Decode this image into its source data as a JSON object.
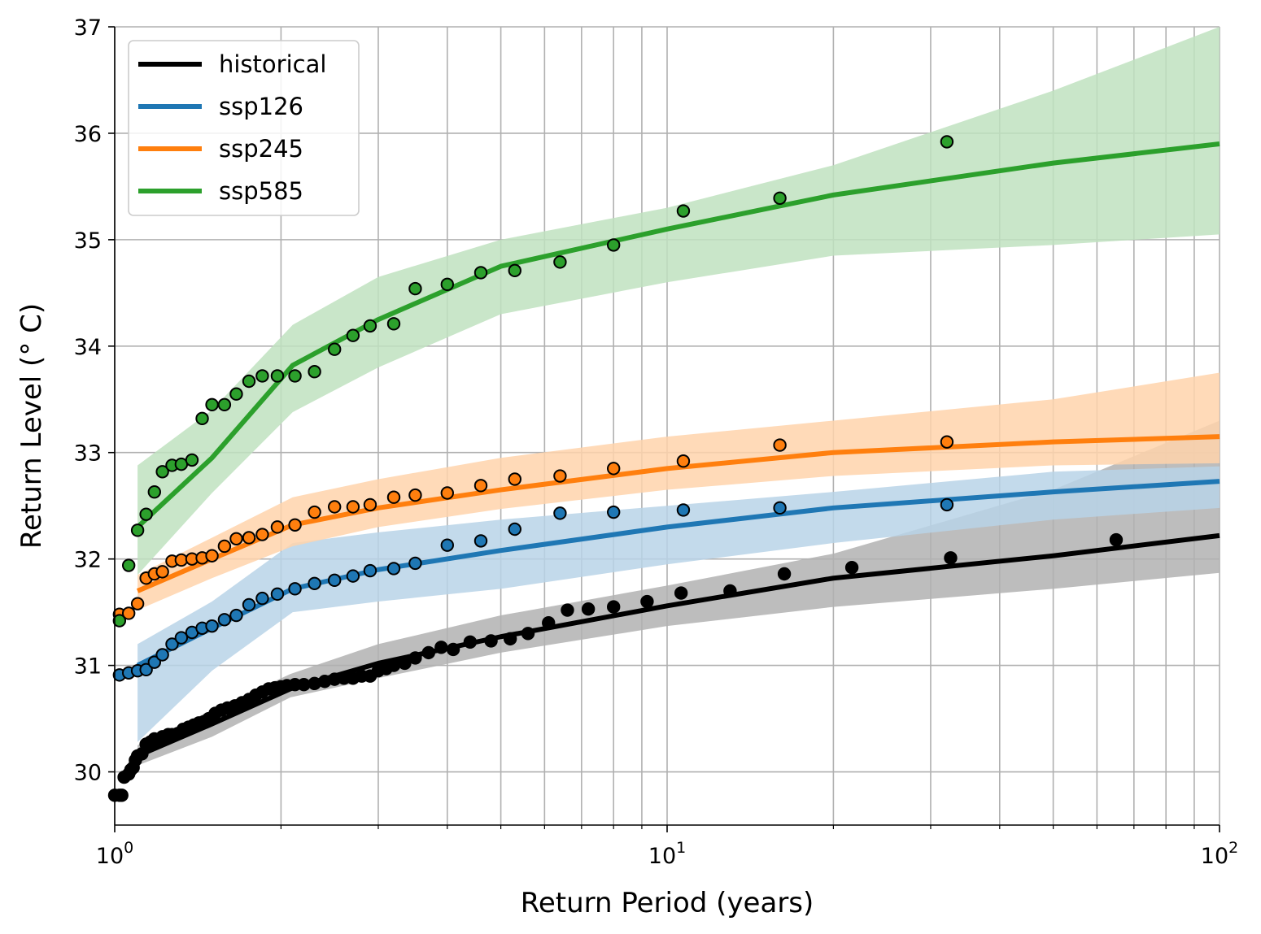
{
  "chart_data": {
    "type": "line",
    "xlabel": "Return Period (years)",
    "ylabel": "Return Level (° C)",
    "x_scale": "log",
    "xlim": [
      1,
      100
    ],
    "ylim": [
      29.5,
      37
    ],
    "grid": "major and minor x, major y",
    "legend_placement": "top-left",
    "x_ticks": [
      {
        "value": 1,
        "base": "10",
        "exp": "0"
      },
      {
        "value": 10,
        "base": "10",
        "exp": "1"
      },
      {
        "value": 100,
        "base": "10",
        "exp": "2"
      }
    ],
    "y_ticks": [
      {
        "value": 30,
        "label": "30"
      },
      {
        "value": 31,
        "label": "31"
      },
      {
        "value": 32,
        "label": "32"
      },
      {
        "value": 33,
        "label": "33"
      },
      {
        "value": 34,
        "label": "34"
      },
      {
        "value": 35,
        "label": "35"
      },
      {
        "value": 36,
        "label": "36"
      },
      {
        "value": 37,
        "label": "37"
      }
    ],
    "series": [
      {
        "name": "historical",
        "color": "#000000",
        "band_color": "#b2b2b2",
        "points_edge": "#000000",
        "fit": [
          [
            1.1,
            30.15
          ],
          [
            1.5,
            30.45
          ],
          [
            2.08,
            30.78
          ],
          [
            3,
            31.02
          ],
          [
            5,
            31.27
          ],
          [
            10,
            31.56
          ],
          [
            20,
            31.82
          ],
          [
            50,
            32.03
          ],
          [
            100,
            32.22
          ]
        ],
        "band_upper": [
          [
            1.1,
            30.25
          ],
          [
            1.5,
            30.58
          ],
          [
            2.08,
            30.92
          ],
          [
            3,
            31.2
          ],
          [
            5,
            31.47
          ],
          [
            10,
            31.75
          ],
          [
            20,
            32.05
          ],
          [
            50,
            32.65
          ],
          [
            100,
            33.3
          ]
        ],
        "band_lower": [
          [
            1.1,
            30.06
          ],
          [
            1.5,
            30.33
          ],
          [
            2.08,
            30.7
          ],
          [
            3,
            30.88
          ],
          [
            5,
            31.12
          ],
          [
            10,
            31.37
          ],
          [
            20,
            31.55
          ],
          [
            50,
            31.72
          ],
          [
            100,
            31.87
          ]
        ],
        "points": [
          [
            1.0,
            29.78
          ],
          [
            1.02,
            29.78
          ],
          [
            1.03,
            29.78
          ],
          [
            1.04,
            29.95
          ],
          [
            1.06,
            29.98
          ],
          [
            1.07,
            30.02
          ],
          [
            1.08,
            30.04
          ],
          [
            1.09,
            30.11
          ],
          [
            1.1,
            30.15
          ],
          [
            1.12,
            30.17
          ],
          [
            1.14,
            30.26
          ],
          [
            1.16,
            30.28
          ],
          [
            1.18,
            30.31
          ],
          [
            1.2,
            30.3
          ],
          [
            1.22,
            30.33
          ],
          [
            1.25,
            30.35
          ],
          [
            1.27,
            30.35
          ],
          [
            1.3,
            30.36
          ],
          [
            1.33,
            30.4
          ],
          [
            1.36,
            30.42
          ],
          [
            1.39,
            30.44
          ],
          [
            1.42,
            30.46
          ],
          [
            1.45,
            30.47
          ],
          [
            1.48,
            30.5
          ],
          [
            1.52,
            30.55
          ],
          [
            1.56,
            30.58
          ],
          [
            1.6,
            30.6
          ],
          [
            1.65,
            30.62
          ],
          [
            1.7,
            30.65
          ],
          [
            1.75,
            30.68
          ],
          [
            1.8,
            30.72
          ],
          [
            1.85,
            30.75
          ],
          [
            1.9,
            30.78
          ],
          [
            1.95,
            30.79
          ],
          [
            2.0,
            30.8
          ],
          [
            2.05,
            30.81
          ],
          [
            2.12,
            30.82
          ],
          [
            2.2,
            30.82
          ],
          [
            2.3,
            30.83
          ],
          [
            2.4,
            30.85
          ],
          [
            2.5,
            30.87
          ],
          [
            2.6,
            30.88
          ],
          [
            2.7,
            30.88
          ],
          [
            2.8,
            30.9
          ],
          [
            2.9,
            30.9
          ],
          [
            3.0,
            30.95
          ],
          [
            3.1,
            30.97
          ],
          [
            3.2,
            31.0
          ],
          [
            3.35,
            31.02
          ],
          [
            3.5,
            31.07
          ],
          [
            3.7,
            31.12
          ],
          [
            3.9,
            31.17
          ],
          [
            4.1,
            31.15
          ],
          [
            4.4,
            31.22
          ],
          [
            4.8,
            31.23
          ],
          [
            5.2,
            31.25
          ],
          [
            5.6,
            31.3
          ],
          [
            6.1,
            31.4
          ],
          [
            6.6,
            31.52
          ],
          [
            7.2,
            31.53
          ],
          [
            8.0,
            31.55
          ],
          [
            9.2,
            31.6
          ],
          [
            10.6,
            31.68
          ],
          [
            13.0,
            31.7
          ],
          [
            16.3,
            31.86
          ],
          [
            21.6,
            31.92
          ],
          [
            32.6,
            32.01
          ],
          [
            65.0,
            32.18
          ]
        ]
      },
      {
        "name": "ssp126",
        "color": "#1f77b4",
        "band_color": "#b9d4e8",
        "points_edge": "#000000",
        "fit": [
          [
            1.1,
            31.0
          ],
          [
            1.5,
            31.35
          ],
          [
            2.1,
            31.72
          ],
          [
            3,
            31.9
          ],
          [
            5,
            32.08
          ],
          [
            10,
            32.3
          ],
          [
            20,
            32.48
          ],
          [
            50,
            32.63
          ],
          [
            100,
            32.73
          ]
        ],
        "band_upper": [
          [
            1.1,
            31.2
          ],
          [
            1.5,
            31.6
          ],
          [
            2.1,
            32.15
          ],
          [
            3,
            32.25
          ],
          [
            5,
            32.37
          ],
          [
            10,
            32.5
          ],
          [
            20,
            32.63
          ],
          [
            50,
            32.82
          ],
          [
            100,
            32.87
          ]
        ],
        "band_lower": [
          [
            1.1,
            30.28
          ],
          [
            1.5,
            30.95
          ],
          [
            2.1,
            31.5
          ],
          [
            3,
            31.6
          ],
          [
            5,
            31.72
          ],
          [
            10,
            31.95
          ],
          [
            20,
            32.15
          ],
          [
            50,
            32.37
          ],
          [
            100,
            32.48
          ]
        ],
        "points": [
          [
            1.02,
            30.91
          ],
          [
            1.06,
            30.93
          ],
          [
            1.1,
            30.95
          ],
          [
            1.14,
            30.96
          ],
          [
            1.18,
            31.03
          ],
          [
            1.22,
            31.1
          ],
          [
            1.27,
            31.2
          ],
          [
            1.32,
            31.26
          ],
          [
            1.38,
            31.31
          ],
          [
            1.44,
            31.35
          ],
          [
            1.5,
            31.37
          ],
          [
            1.58,
            31.43
          ],
          [
            1.66,
            31.47
          ],
          [
            1.75,
            31.57
          ],
          [
            1.85,
            31.63
          ],
          [
            1.97,
            31.67
          ],
          [
            2.12,
            31.72
          ],
          [
            2.3,
            31.77
          ],
          [
            2.5,
            31.8
          ],
          [
            2.7,
            31.84
          ],
          [
            2.9,
            31.89
          ],
          [
            3.2,
            31.91
          ],
          [
            3.5,
            31.96
          ],
          [
            4.0,
            32.13
          ],
          [
            4.6,
            32.17
          ],
          [
            5.3,
            32.28
          ],
          [
            6.4,
            32.43
          ],
          [
            8.0,
            32.44
          ],
          [
            10.7,
            32.46
          ],
          [
            16.0,
            32.48
          ],
          [
            32.1,
            32.51
          ]
        ]
      },
      {
        "name": "ssp245",
        "color": "#ff7f0e",
        "band_color": "#ffd4ab",
        "points_edge": "#000000",
        "fit": [
          [
            1.1,
            31.7
          ],
          [
            1.5,
            32.0
          ],
          [
            2.1,
            32.32
          ],
          [
            3,
            32.48
          ],
          [
            5,
            32.65
          ],
          [
            10,
            32.85
          ],
          [
            20,
            33.0
          ],
          [
            50,
            33.1
          ],
          [
            100,
            33.15
          ]
        ],
        "band_upper": [
          [
            1.1,
            31.85
          ],
          [
            1.5,
            32.2
          ],
          [
            2.1,
            32.58
          ],
          [
            3,
            32.75
          ],
          [
            5,
            32.95
          ],
          [
            10,
            33.15
          ],
          [
            20,
            33.3
          ],
          [
            50,
            33.5
          ],
          [
            100,
            33.75
          ]
        ],
        "band_lower": [
          [
            1.1,
            31.52
          ],
          [
            1.5,
            31.82
          ],
          [
            2.1,
            32.12
          ],
          [
            3,
            32.3
          ],
          [
            5,
            32.47
          ],
          [
            10,
            32.65
          ],
          [
            20,
            32.78
          ],
          [
            50,
            32.88
          ],
          [
            100,
            32.9
          ]
        ],
        "points": [
          [
            1.02,
            31.48
          ],
          [
            1.06,
            31.49
          ],
          [
            1.1,
            31.58
          ],
          [
            1.14,
            31.82
          ],
          [
            1.18,
            31.86
          ],
          [
            1.22,
            31.88
          ],
          [
            1.27,
            31.98
          ],
          [
            1.32,
            31.99
          ],
          [
            1.38,
            32.0
          ],
          [
            1.44,
            32.01
          ],
          [
            1.5,
            32.03
          ],
          [
            1.58,
            32.12
          ],
          [
            1.66,
            32.19
          ],
          [
            1.75,
            32.2
          ],
          [
            1.85,
            32.23
          ],
          [
            1.97,
            32.3
          ],
          [
            2.12,
            32.32
          ],
          [
            2.3,
            32.44
          ],
          [
            2.5,
            32.49
          ],
          [
            2.7,
            32.49
          ],
          [
            2.9,
            32.51
          ],
          [
            3.2,
            32.58
          ],
          [
            3.5,
            32.6
          ],
          [
            4.0,
            32.62
          ],
          [
            4.6,
            32.69
          ],
          [
            5.3,
            32.75
          ],
          [
            6.4,
            32.78
          ],
          [
            8.0,
            32.85
          ],
          [
            10.7,
            32.92
          ],
          [
            16.0,
            33.07
          ],
          [
            32.1,
            33.1
          ]
        ]
      },
      {
        "name": "ssp585",
        "color": "#2ca02c",
        "band_color": "#c0e2c0",
        "points_edge": "#000000",
        "fit": [
          [
            1.1,
            32.3
          ],
          [
            1.5,
            32.95
          ],
          [
            2.1,
            33.82
          ],
          [
            3,
            34.25
          ],
          [
            5,
            34.75
          ],
          [
            10,
            35.1
          ],
          [
            20,
            35.42
          ],
          [
            50,
            35.72
          ],
          [
            100,
            35.9
          ]
        ],
        "band_upper": [
          [
            1.1,
            32.88
          ],
          [
            1.5,
            33.4
          ],
          [
            2.1,
            34.2
          ],
          [
            3,
            34.65
          ],
          [
            5,
            35.0
          ],
          [
            10,
            35.3
          ],
          [
            20,
            35.7
          ],
          [
            50,
            36.4
          ],
          [
            100,
            37.0
          ]
        ],
        "band_lower": [
          [
            1.1,
            31.85
          ],
          [
            1.5,
            32.62
          ],
          [
            2.1,
            33.38
          ],
          [
            3,
            33.8
          ],
          [
            5,
            34.3
          ],
          [
            10,
            34.6
          ],
          [
            20,
            34.85
          ],
          [
            50,
            34.95
          ],
          [
            100,
            35.05
          ]
        ],
        "points": [
          [
            1.02,
            31.42
          ],
          [
            1.06,
            31.94
          ],
          [
            1.1,
            32.27
          ],
          [
            1.14,
            32.42
          ],
          [
            1.18,
            32.63
          ],
          [
            1.22,
            32.82
          ],
          [
            1.27,
            32.88
          ],
          [
            1.32,
            32.89
          ],
          [
            1.38,
            32.93
          ],
          [
            1.44,
            33.32
          ],
          [
            1.5,
            33.45
          ],
          [
            1.58,
            33.45
          ],
          [
            1.66,
            33.55
          ],
          [
            1.75,
            33.67
          ],
          [
            1.85,
            33.72
          ],
          [
            1.97,
            33.72
          ],
          [
            2.12,
            33.72
          ],
          [
            2.3,
            33.76
          ],
          [
            2.5,
            33.97
          ],
          [
            2.7,
            34.1
          ],
          [
            2.9,
            34.19
          ],
          [
            3.2,
            34.21
          ],
          [
            3.5,
            34.54
          ],
          [
            4.0,
            34.58
          ],
          [
            4.6,
            34.69
          ],
          [
            5.3,
            34.71
          ],
          [
            6.4,
            34.79
          ],
          [
            8.0,
            34.95
          ],
          [
            10.7,
            35.27
          ],
          [
            16.0,
            35.39
          ],
          [
            32.1,
            35.92
          ]
        ]
      }
    ]
  }
}
